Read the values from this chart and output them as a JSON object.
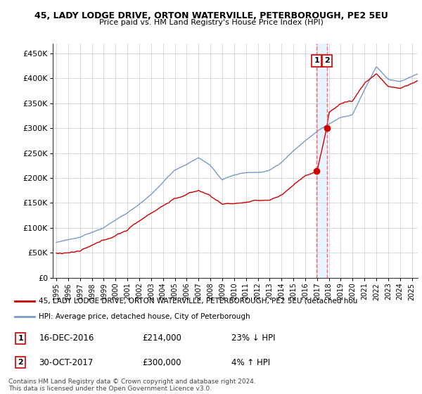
{
  "title1": "45, LADY LODGE DRIVE, ORTON WATERVILLE, PETERBOROUGH, PE2 5EU",
  "title2": "Price paid vs. HM Land Registry's House Price Index (HPI)",
  "ylabel_ticks": [
    "£0",
    "£50K",
    "£100K",
    "£150K",
    "£200K",
    "£250K",
    "£300K",
    "£350K",
    "£400K",
    "£450K"
  ],
  "ytick_values": [
    0,
    50000,
    100000,
    150000,
    200000,
    250000,
    300000,
    350000,
    400000,
    450000
  ],
  "ylim": [
    0,
    470000
  ],
  "xlim_start": 1994.7,
  "xlim_end": 2025.5,
  "background_color": "#ffffff",
  "grid_color": "#cccccc",
  "hpi_color": "#7799cc",
  "property_color": "#cc0000",
  "vline_color": "#ff6666",
  "shade_color": "#ddeeff",
  "sale1_x": 2016.96,
  "sale1_y": 214000,
  "sale2_x": 2017.83,
  "sale2_y": 300000,
  "legend_label1": "45, LADY LODGE DRIVE, ORTON WATERVILLE, PETERBOROUGH, PE2 5EU (detached hou",
  "legend_label2": "HPI: Average price, detached house, City of Peterborough",
  "annotation1_date": "16-DEC-2016",
  "annotation1_price": "£214,000",
  "annotation1_hpi": "23% ↓ HPI",
  "annotation2_date": "30-OCT-2017",
  "annotation2_price": "£300,000",
  "annotation2_hpi": "4% ↑ HPI",
  "footer": "Contains HM Land Registry data © Crown copyright and database right 2024.\nThis data is licensed under the Open Government Licence v3.0."
}
